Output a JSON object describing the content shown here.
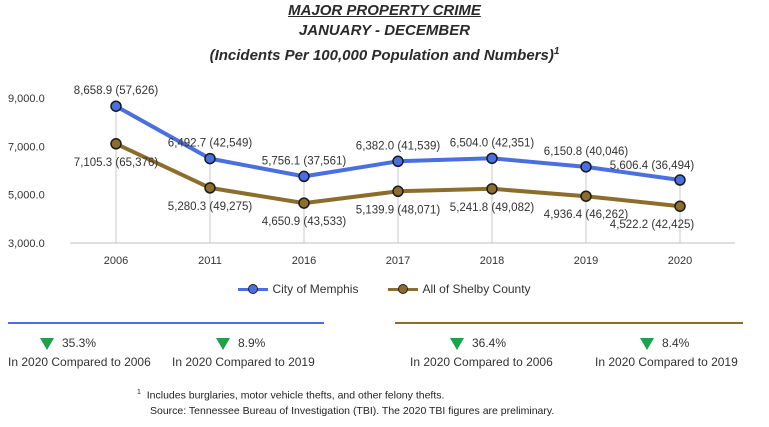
{
  "chart_data": {
    "type": "line",
    "title": "MAJOR PROPERTY CRIME",
    "subtitle1": "JANUARY - DECEMBER",
    "subtitle2": "(Incidents Per 100,000 Population and Numbers)",
    "subtitle_sup": "1",
    "categories": [
      "2006",
      "2011",
      "2016",
      "2017",
      "2018",
      "2019",
      "2020"
    ],
    "y_ticks": [
      "9,000.0",
      "7,000.0",
      "5,000.0",
      "3,000.0"
    ],
    "ylim": [
      3000,
      9000
    ],
    "series": [
      {
        "name": "City of Memphis",
        "color": "#4a6fe0",
        "values": [
          8658.9,
          6492.7,
          5756.1,
          6382.0,
          6504.0,
          6150.8,
          5606.4
        ],
        "labels": [
          "8,658.9 (57,626)",
          "6,492.7 (42,549)",
          "5,756.1 (37,561)",
          "6,382.0 (41,539)",
          "6,504.0 (42,351)",
          "6,150.8 (40,046)",
          "5,606.4 (36,494)"
        ]
      },
      {
        "name": "All of Shelby County",
        "color": "#8c6d2c",
        "values": [
          7105.3,
          5280.3,
          4650.9,
          5139.9,
          5241.8,
          4936.4,
          4522.2
        ],
        "labels": [
          "7,105.3 (65,376)",
          "5,280.3 (49,275)",
          "4,650.9 (43,533)",
          "5,139.9 (48,071)",
          "5,241.8 (49,082)",
          "4,936.4 (46,262)",
          "4,522.2 (42,425)"
        ]
      }
    ],
    "legend_position": "bottom",
    "grid": false
  },
  "summary": {
    "memphis": [
      {
        "pct": "35.3%",
        "text": "In 2020 Compared to 2006"
      },
      {
        "pct": "8.9%",
        "text": "In 2020 Compared to 2019"
      }
    ],
    "shelby": [
      {
        "pct": "36.4%",
        "text": "In 2020 Compared to 2006"
      },
      {
        "pct": "8.4%",
        "text": "In 2020 Compared to 2019"
      }
    ]
  },
  "footnote": {
    "marker": "1",
    "line1": "Includes burglaries, motor vehicle thefts, and other felony thefts.",
    "line2": "Source: Tennessee Bureau of Investigation (TBI). The 2020 TBI figures are preliminary."
  }
}
